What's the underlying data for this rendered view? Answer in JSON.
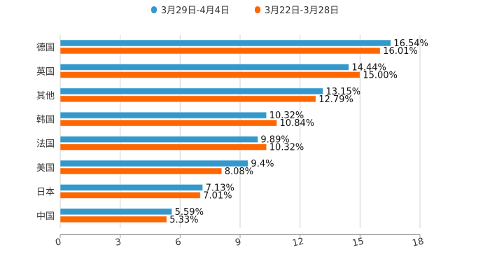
{
  "chart_data": {
    "type": "bar",
    "orientation": "horizontal",
    "categories": [
      "德国",
      "英国",
      "其他",
      "韩国",
      "法国",
      "美国",
      "日本",
      "中国"
    ],
    "series": [
      {
        "name": "3月29日-4月4日",
        "color": "#3399cc",
        "values": [
          16.54,
          14.44,
          13.15,
          10.32,
          9.89,
          9.4,
          7.13,
          5.59
        ],
        "labels": [
          "16.54%",
          "14.44%",
          "13.15%",
          "10.32%",
          "9.89%",
          "9.4%",
          "7.13%",
          "5.59%"
        ]
      },
      {
        "name": "3月22日-3月28日",
        "color": "#ff6600",
        "values": [
          16.01,
          15.0,
          12.79,
          10.84,
          10.32,
          8.08,
          7.01,
          5.33
        ],
        "labels": [
          "16.01%",
          "15.00%",
          "12.79%",
          "10.84%",
          "10.32%",
          "8.08%",
          "7.01%",
          "5.33%"
        ]
      }
    ],
    "xlim": [
      0,
      18
    ],
    "xticks": [
      "0",
      "3",
      "6",
      "9",
      "12",
      "15",
      "18"
    ],
    "grid": true,
    "legend_position": "top-center",
    "title": "",
    "xlabel": "",
    "ylabel": ""
  }
}
